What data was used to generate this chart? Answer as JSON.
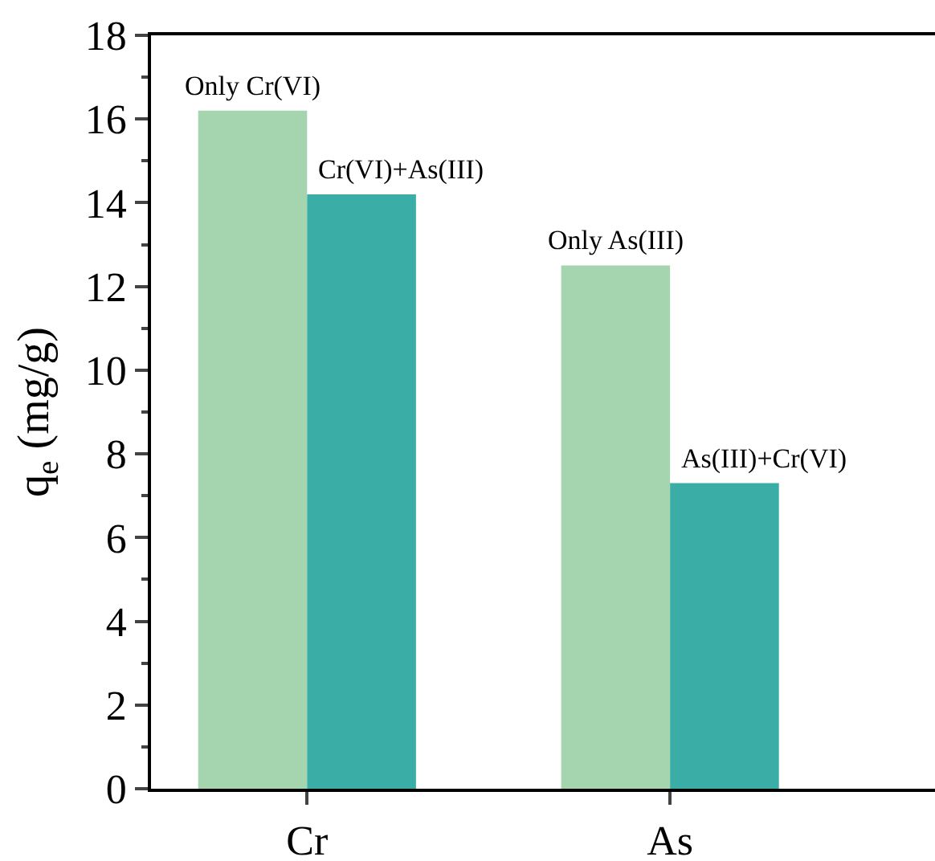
{
  "chart_data": {
    "type": "bar",
    "ylabel": "q$_{e}$ (mg/g)",
    "categories": [
      "Cr",
      "As"
    ],
    "series": [
      {
        "color": "#a5d5ae",
        "values": [
          16.2,
          12.5
        ]
      },
      {
        "color": "#3bada7",
        "values": [
          14.2,
          7.3
        ]
      }
    ],
    "ylim": [
      0,
      18
    ],
    "yticks": [
      0,
      2,
      4,
      6,
      8,
      10,
      12,
      14,
      16,
      18
    ],
    "grid": false,
    "annotations": [
      {
        "text": "Only Cr(VI)",
        "x": "Cr",
        "y": 16.2
      },
      {
        "text": "Cr(VI)+As(III)",
        "x": "Cr",
        "y": 14.2
      },
      {
        "text": "Only As(III)",
        "x": "As",
        "y": 12.5
      },
      {
        "text": "As(III)+Cr(VI)",
        "x": "As",
        "y": 7.3
      }
    ]
  }
}
